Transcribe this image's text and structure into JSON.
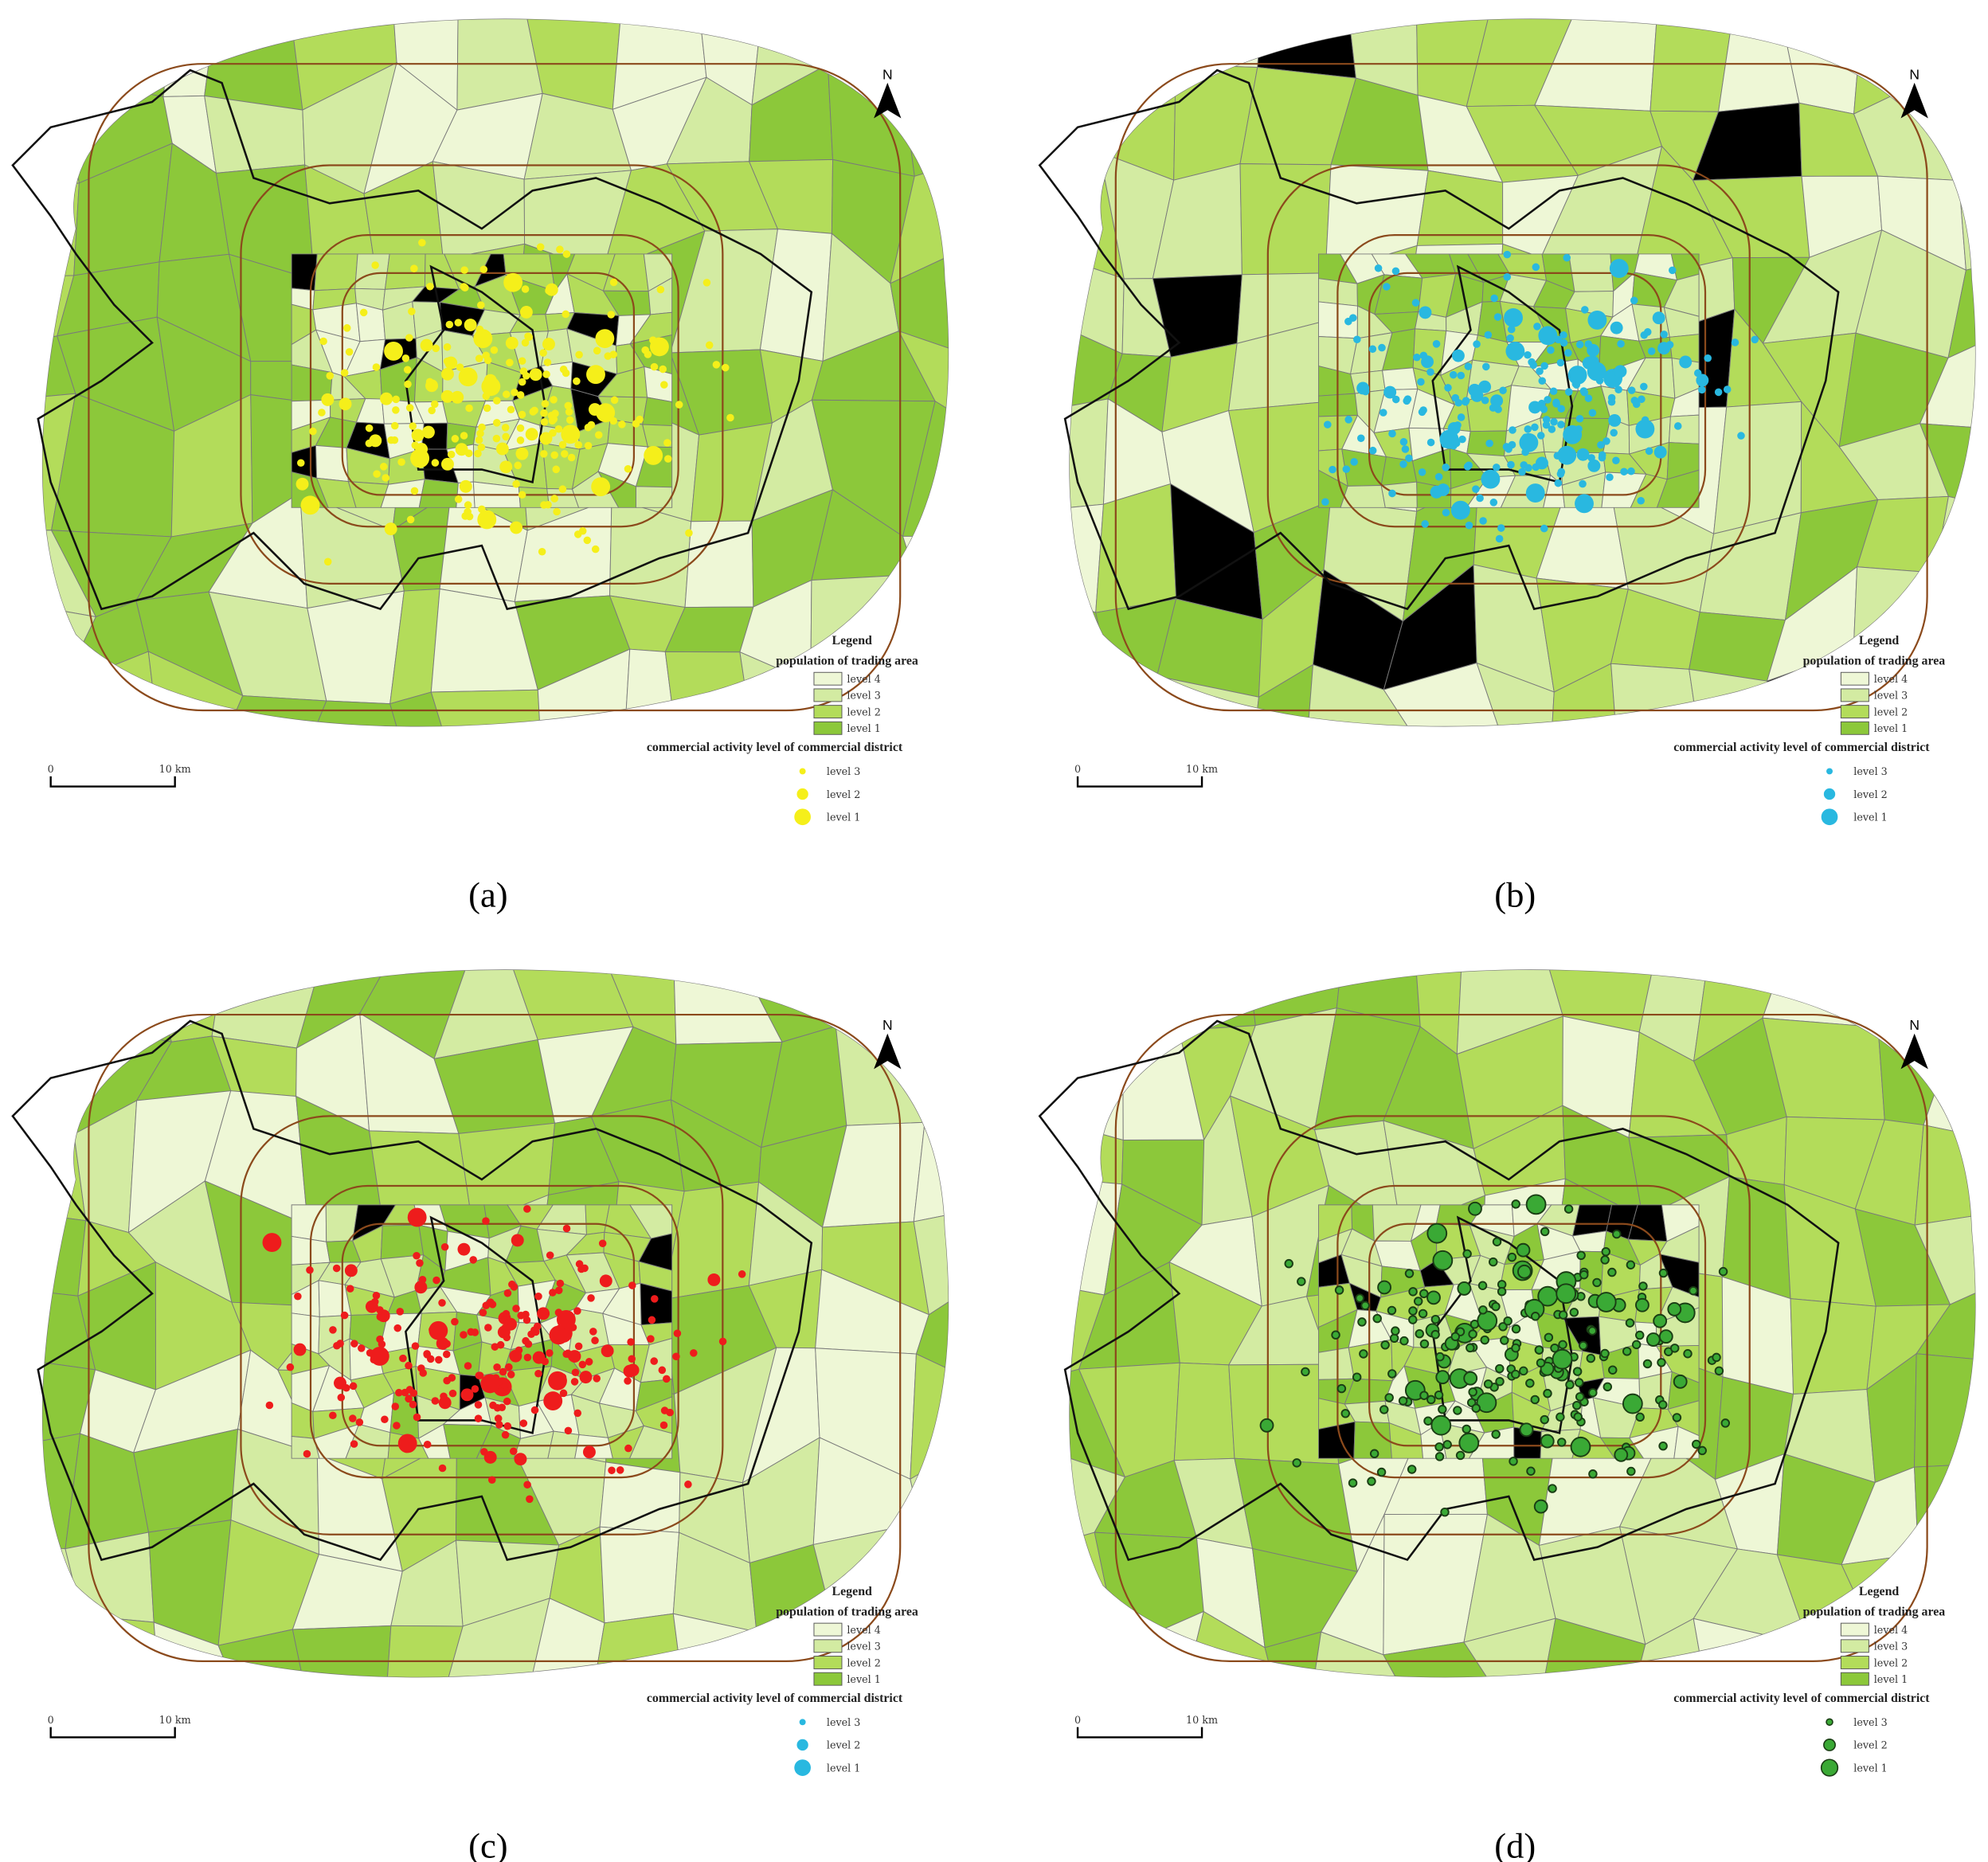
{
  "panels": [
    {
      "label": "(a)",
      "north": "N",
      "legend": {
        "title": "Legend",
        "population_title": "population of trading area",
        "population_levels": [
          "level 4",
          "level 3",
          "level 2",
          "level 1"
        ],
        "activity_title": "commercial activity level of commercial district",
        "activity_levels": [
          "level 3",
          "level 2",
          "level 1"
        ]
      },
      "scale": {
        "start": "0",
        "end": "10 km"
      }
    },
    {
      "label": "(b)",
      "north": "N",
      "legend": {
        "title": "Legend",
        "population_title": "population of trading area",
        "population_levels": [
          "level 4",
          "level 3",
          "level 2",
          "level 1"
        ],
        "activity_title": "commercial activity level of commercial district",
        "activity_levels": [
          "level 3",
          "level 2",
          "level 1"
        ]
      },
      "scale": {
        "start": "0",
        "end": "10 km"
      }
    },
    {
      "label": "(c)",
      "north": "N",
      "legend": {
        "title": "Legend",
        "population_title": "population of trading area",
        "population_levels": [
          "level 4",
          "level 3",
          "level 2",
          "level 1"
        ],
        "activity_title": "commercial activity level of commercial district",
        "activity_levels": [
          "level 3",
          "level 2",
          "level 1"
        ]
      },
      "scale": {
        "start": "0",
        "end": "10 km"
      }
    },
    {
      "label": "(d)",
      "north": "N",
      "legend": {
        "title": "Legend",
        "population_title": "population of trading area",
        "population_levels": [
          "level 4",
          "level 3",
          "level 2",
          "level 1"
        ],
        "activity_title": "commercial activity level of commercial district",
        "activity_levels": [
          "level 3",
          "level 2",
          "level 1"
        ]
      },
      "scale": {
        "start": "0",
        "end": "10 km"
      }
    }
  ]
}
